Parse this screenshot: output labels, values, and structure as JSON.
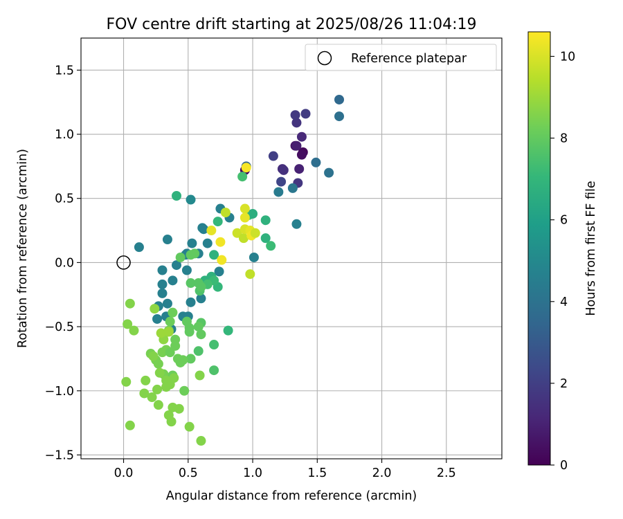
{
  "chart_data": {
    "type": "scatter",
    "title": "FOV centre drift starting at 2025/08/26 11:04:19",
    "xlabel": "Angular distance from reference (arcmin)",
    "ylabel": "Rotation from reference (arcmin)",
    "xlim": [
      -0.33,
      2.93
    ],
    "ylim": [
      -1.53,
      1.75
    ],
    "xticks": [
      0.0,
      0.5,
      1.0,
      1.5,
      2.0,
      2.5
    ],
    "xtick_labels": [
      "0.0",
      "0.5",
      "1.0",
      "1.5",
      "2.0",
      "2.5"
    ],
    "yticks": [
      -1.5,
      -1.0,
      -0.5,
      0.0,
      0.5,
      1.0,
      1.5
    ],
    "ytick_labels": [
      "−1.5",
      "−1.0",
      "−0.5",
      "0.0",
      "0.5",
      "1.0",
      "1.5"
    ],
    "grid": true,
    "legend": {
      "position": "top-right",
      "entries": [
        "Reference platepar"
      ]
    },
    "reference_point": {
      "x": 0.0,
      "y": 0.0
    },
    "colorbar": {
      "label": "Hours from first FF file",
      "range": [
        0,
        10.6
      ],
      "ticks": [
        0,
        2,
        4,
        6,
        8,
        10
      ],
      "tick_labels": [
        "0",
        "2",
        "4",
        "6",
        "8",
        "10"
      ],
      "colormap": "viridis"
    },
    "colormap_stops": [
      "#440154",
      "#482878",
      "#3e4989",
      "#31688e",
      "#26828e",
      "#1f9e89",
      "#35b779",
      "#6ece58",
      "#b5de2b",
      "#fde725"
    ],
    "points": [
      {
        "x": 1.39,
        "y": 0.86,
        "h": 0.2
      },
      {
        "x": 1.38,
        "y": 0.84,
        "h": 0.4
      },
      {
        "x": 1.33,
        "y": 0.91,
        "h": 0.6
      },
      {
        "x": 1.34,
        "y": 0.91,
        "h": 0.9
      },
      {
        "x": 1.36,
        "y": 0.73,
        "h": 1.0
      },
      {
        "x": 1.38,
        "y": 0.98,
        "h": 1.2
      },
      {
        "x": 1.23,
        "y": 0.73,
        "h": 1.4
      },
      {
        "x": 1.24,
        "y": 0.72,
        "h": 1.5
      },
      {
        "x": 1.34,
        "y": 1.09,
        "h": 1.6
      },
      {
        "x": 1.33,
        "y": 1.15,
        "h": 1.8
      },
      {
        "x": 1.41,
        "y": 1.16,
        "h": 1.9
      },
      {
        "x": 1.35,
        "y": 0.62,
        "h": 1.7
      },
      {
        "x": 1.16,
        "y": 0.83,
        "h": 2.0
      },
      {
        "x": 1.22,
        "y": 0.63,
        "h": 2.2
      },
      {
        "x": 1.67,
        "y": 1.27,
        "h": 3.6
      },
      {
        "x": 1.67,
        "y": 1.14,
        "h": 3.9
      },
      {
        "x": 1.49,
        "y": 0.78,
        "h": 3.8
      },
      {
        "x": 1.59,
        "y": 0.7,
        "h": 4.0
      },
      {
        "x": 1.31,
        "y": 0.58,
        "h": 4.2
      },
      {
        "x": 1.2,
        "y": 0.55,
        "h": 4.4
      },
      {
        "x": 1.34,
        "y": 0.3,
        "h": 4.6
      },
      {
        "x": 0.94,
        "y": 0.72,
        "h": 0.3
      },
      {
        "x": 0.95,
        "y": 0.75,
        "h": 3.5
      },
      {
        "x": 0.12,
        "y": 0.12,
        "h": 4.6
      },
      {
        "x": 0.34,
        "y": 0.18,
        "h": 4.6
      },
      {
        "x": 0.3,
        "y": -0.06,
        "h": 4.6
      },
      {
        "x": 0.38,
        "y": -0.14,
        "h": 4.6
      },
      {
        "x": 0.41,
        "y": -0.02,
        "h": 4.6
      },
      {
        "x": 0.48,
        "y": 0.06,
        "h": 4.6
      },
      {
        "x": 0.53,
        "y": 0.15,
        "h": 4.6
      },
      {
        "x": 0.58,
        "y": 0.07,
        "h": 4.6
      },
      {
        "x": 0.61,
        "y": 0.27,
        "h": 4.6
      },
      {
        "x": 0.65,
        "y": 0.15,
        "h": 4.6
      },
      {
        "x": 0.75,
        "y": 0.42,
        "h": 4.6
      },
      {
        "x": 0.52,
        "y": 0.49,
        "h": 5.0
      },
      {
        "x": 0.82,
        "y": 0.35,
        "h": 4.6
      },
      {
        "x": 0.74,
        "y": -0.07,
        "h": 4.6
      },
      {
        "x": 0.52,
        "y": -0.31,
        "h": 4.6
      },
      {
        "x": 0.6,
        "y": -0.28,
        "h": 4.6
      },
      {
        "x": 0.46,
        "y": -0.42,
        "h": 4.6
      },
      {
        "x": 0.5,
        "y": -0.42,
        "h": 4.6
      },
      {
        "x": 0.27,
        "y": -0.34,
        "h": 4.6
      },
      {
        "x": 0.26,
        "y": -0.44,
        "h": 4.6
      },
      {
        "x": 0.3,
        "y": -0.17,
        "h": 4.6
      },
      {
        "x": 0.3,
        "y": -0.24,
        "h": 4.6
      },
      {
        "x": 0.34,
        "y": -0.32,
        "h": 4.6
      },
      {
        "x": 0.33,
        "y": -0.42,
        "h": 4.6
      },
      {
        "x": 0.49,
        "y": -0.06,
        "h": 4.6
      },
      {
        "x": 0.37,
        "y": -0.52,
        "h": 4.6
      },
      {
        "x": 1.01,
        "y": 0.04,
        "h": 4.6
      },
      {
        "x": 0.62,
        "y": 0.26,
        "h": 4.6
      },
      {
        "x": 0.49,
        "y": 0.07,
        "h": 4.6
      },
      {
        "x": 0.41,
        "y": 0.52,
        "h": 6.8
      },
      {
        "x": 0.92,
        "y": 0.67,
        "h": 7.4
      },
      {
        "x": 0.97,
        "y": 0.37,
        "h": 7.2
      },
      {
        "x": 1.0,
        "y": 0.38,
        "h": 6.6
      },
      {
        "x": 1.1,
        "y": 0.33,
        "h": 6.8
      },
      {
        "x": 1.1,
        "y": 0.19,
        "h": 6.8
      },
      {
        "x": 1.14,
        "y": 0.13,
        "h": 7.2
      },
      {
        "x": 0.73,
        "y": 0.32,
        "h": 7.0
      },
      {
        "x": 0.7,
        "y": 0.06,
        "h": 6.8
      },
      {
        "x": 0.63,
        "y": -0.14,
        "h": 6.8
      },
      {
        "x": 0.68,
        "y": -0.11,
        "h": 6.8
      },
      {
        "x": 0.73,
        "y": -0.19,
        "h": 7.0
      },
      {
        "x": 0.7,
        "y": -0.14,
        "h": 7.2
      },
      {
        "x": 0.65,
        "y": -0.17,
        "h": 7.4
      },
      {
        "x": 0.59,
        "y": -0.22,
        "h": 7.6
      },
      {
        "x": 0.6,
        "y": -0.19,
        "h": 7.8
      },
      {
        "x": 0.52,
        "y": -0.16,
        "h": 7.8
      },
      {
        "x": 0.58,
        "y": -0.16,
        "h": 7.8
      },
      {
        "x": 0.52,
        "y": 0.06,
        "h": 8.0
      },
      {
        "x": 0.44,
        "y": 0.04,
        "h": 8.0
      },
      {
        "x": 0.55,
        "y": 0.07,
        "h": 8.0
      },
      {
        "x": 0.81,
        "y": -0.53,
        "h": 7.0
      },
      {
        "x": 0.7,
        "y": -0.64,
        "h": 7.4
      },
      {
        "x": 0.7,
        "y": -0.84,
        "h": 7.6
      },
      {
        "x": 0.58,
        "y": -0.69,
        "h": 7.6
      },
      {
        "x": 0.6,
        "y": -0.47,
        "h": 7.8
      },
      {
        "x": 0.58,
        "y": -0.5,
        "h": 8.0
      },
      {
        "x": 0.6,
        "y": -0.56,
        "h": 8.0
      },
      {
        "x": 0.51,
        "y": -0.51,
        "h": 8.0
      },
      {
        "x": 0.51,
        "y": -0.54,
        "h": 8.0
      },
      {
        "x": 0.49,
        "y": -0.46,
        "h": 8.0
      },
      {
        "x": 0.52,
        "y": -0.75,
        "h": 8.0
      },
      {
        "x": 0.46,
        "y": -0.76,
        "h": 8.2
      },
      {
        "x": 0.47,
        "y": -1.0,
        "h": 8.2
      },
      {
        "x": 0.4,
        "y": -0.6,
        "h": 8.2
      },
      {
        "x": 0.4,
        "y": -0.65,
        "h": 8.2
      },
      {
        "x": 0.42,
        "y": -0.75,
        "h": 8.2
      },
      {
        "x": 0.44,
        "y": -0.78,
        "h": 8.2
      },
      {
        "x": 0.36,
        "y": -0.46,
        "h": 8.2
      },
      {
        "x": 0.38,
        "y": -0.39,
        "h": 8.2
      },
      {
        "x": 0.35,
        "y": -0.53,
        "h": 8.4
      },
      {
        "x": 0.31,
        "y": -0.56,
        "h": 8.4
      },
      {
        "x": 0.3,
        "y": -0.7,
        "h": 8.4
      },
      {
        "x": 0.33,
        "y": -0.68,
        "h": 8.4
      },
      {
        "x": 0.36,
        "y": -0.7,
        "h": 8.2
      },
      {
        "x": 0.38,
        "y": -0.88,
        "h": 8.2
      },
      {
        "x": 0.31,
        "y": -0.87,
        "h": 8.4
      },
      {
        "x": 0.27,
        "y": -0.79,
        "h": 8.4
      },
      {
        "x": 0.25,
        "y": -0.76,
        "h": 8.4
      },
      {
        "x": 0.21,
        "y": -0.71,
        "h": 8.4
      },
      {
        "x": 0.23,
        "y": -0.73,
        "h": 8.6
      },
      {
        "x": 0.28,
        "y": -0.86,
        "h": 8.6
      },
      {
        "x": 0.33,
        "y": -0.92,
        "h": 8.6
      },
      {
        "x": 0.36,
        "y": -0.95,
        "h": 8.6
      },
      {
        "x": 0.33,
        "y": -0.97,
        "h": 8.6
      },
      {
        "x": 0.26,
        "y": -0.99,
        "h": 8.6
      },
      {
        "x": 0.22,
        "y": -1.05,
        "h": 8.6
      },
      {
        "x": 0.16,
        "y": -1.02,
        "h": 8.6
      },
      {
        "x": 0.17,
        "y": -0.92,
        "h": 8.6
      },
      {
        "x": 0.02,
        "y": -0.93,
        "h": 8.6
      },
      {
        "x": 0.27,
        "y": -1.11,
        "h": 8.6
      },
      {
        "x": 0.38,
        "y": -1.13,
        "h": 8.6
      },
      {
        "x": 0.43,
        "y": -1.14,
        "h": 8.6
      },
      {
        "x": 0.35,
        "y": -1.19,
        "h": 8.6
      },
      {
        "x": 0.37,
        "y": -1.24,
        "h": 8.6
      },
      {
        "x": 0.05,
        "y": -1.27,
        "h": 8.6
      },
      {
        "x": 0.51,
        "y": -1.28,
        "h": 8.6
      },
      {
        "x": 0.6,
        "y": -1.39,
        "h": 8.6
      },
      {
        "x": 0.59,
        "y": -0.88,
        "h": 8.6
      },
      {
        "x": 0.03,
        "y": -0.48,
        "h": 8.6
      },
      {
        "x": 0.08,
        "y": -0.53,
        "h": 8.6
      },
      {
        "x": 0.05,
        "y": -0.32,
        "h": 8.6
      },
      {
        "x": 0.24,
        "y": -0.36,
        "h": 8.8
      },
      {
        "x": 0.31,
        "y": -0.6,
        "h": 8.8
      },
      {
        "x": 0.29,
        "y": -0.55,
        "h": 9.0
      },
      {
        "x": 0.35,
        "y": -0.54,
        "h": 9.0
      },
      {
        "x": 0.39,
        "y": -0.9,
        "h": 8.6
      },
      {
        "x": 0.79,
        "y": 0.39,
        "h": 9.6
      },
      {
        "x": 0.94,
        "y": 0.42,
        "h": 10.0
      },
      {
        "x": 0.94,
        "y": 0.35,
        "h": 10.2
      },
      {
        "x": 0.88,
        "y": 0.23,
        "h": 9.8
      },
      {
        "x": 0.93,
        "y": 0.19,
        "h": 9.6
      },
      {
        "x": 0.94,
        "y": 0.26,
        "h": 10.0
      },
      {
        "x": 0.98,
        "y": 0.25,
        "h": 10.2
      },
      {
        "x": 0.99,
        "y": 0.21,
        "h": 10.4
      },
      {
        "x": 1.02,
        "y": 0.23,
        "h": 9.8
      },
      {
        "x": 0.68,
        "y": 0.25,
        "h": 10.2
      },
      {
        "x": 0.75,
        "y": 0.16,
        "h": 10.4
      },
      {
        "x": 0.76,
        "y": 0.02,
        "h": 10.4
      },
      {
        "x": 0.98,
        "y": -0.09,
        "h": 9.6
      },
      {
        "x": 0.95,
        "y": 0.74,
        "h": 10.5
      }
    ]
  }
}
